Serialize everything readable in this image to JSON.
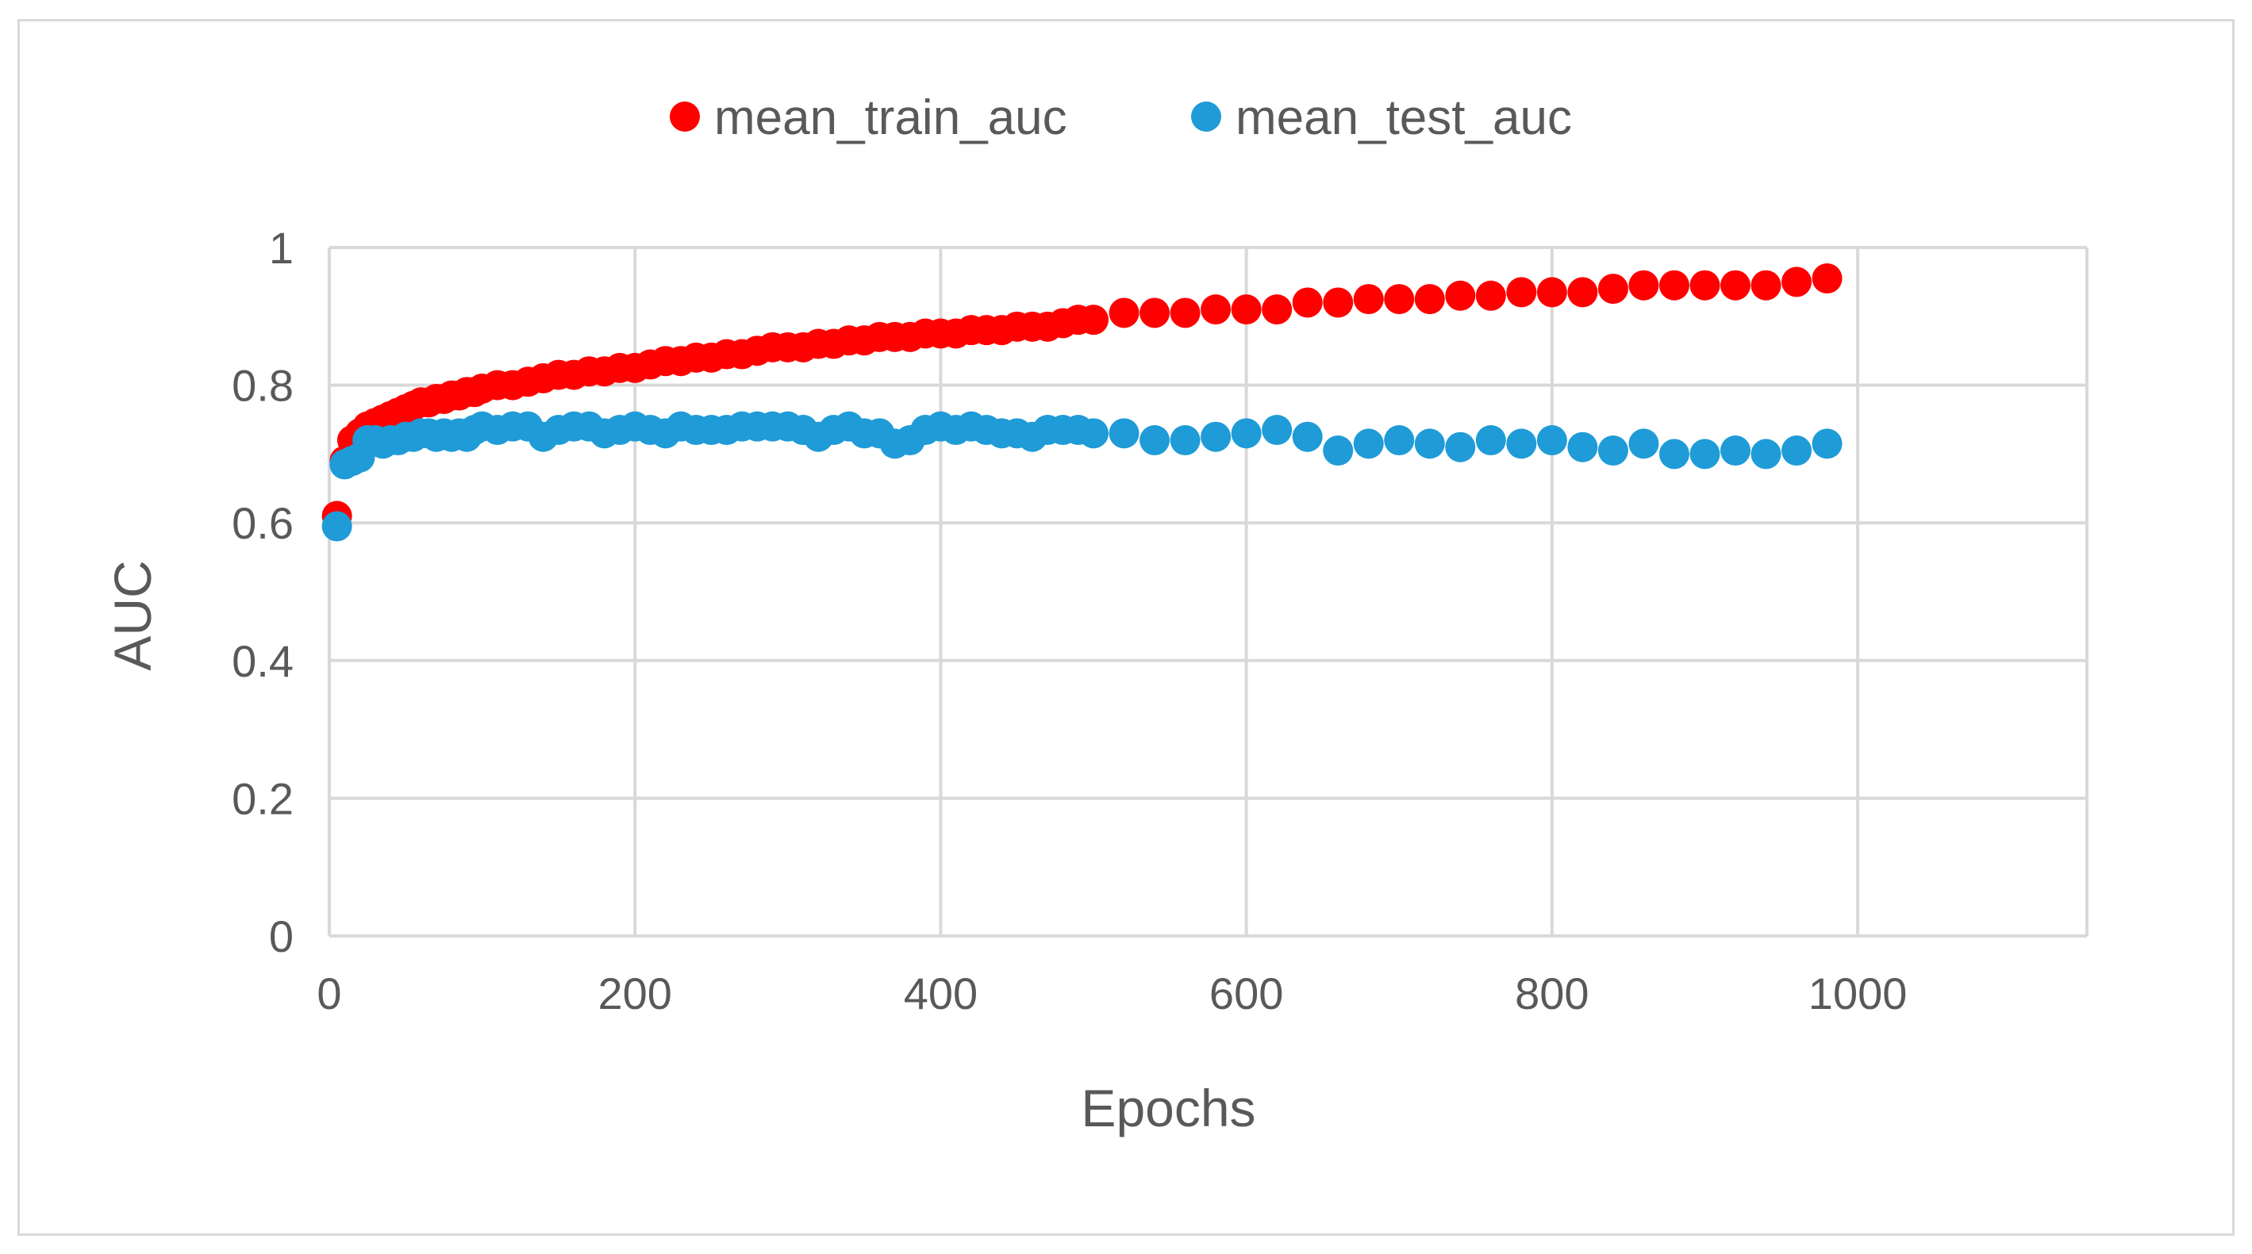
{
  "chart_data": {
    "type": "scatter",
    "title": "",
    "xlabel": "Epochs",
    "ylabel": "AUC",
    "xlim": [
      0,
      1150
    ],
    "ylim": [
      0,
      1
    ],
    "x_ticks": [
      0,
      200,
      400,
      600,
      800,
      1000
    ],
    "y_ticks": [
      0,
      0.2,
      0.4,
      0.6,
      0.8,
      1
    ],
    "x_tick_labels": [
      "0",
      "200",
      "400",
      "600",
      "800",
      "1000"
    ],
    "y_tick_labels": [
      "0",
      "0.2",
      "0.4",
      "0.6",
      "0.8",
      "1"
    ],
    "grid": "both",
    "legend_position": "top-center",
    "series": [
      {
        "name": "mean_train_auc",
        "color": "#ff0000",
        "x": [
          5,
          10,
          15,
          20,
          25,
          30,
          35,
          40,
          45,
          50,
          55,
          60,
          65,
          70,
          75,
          80,
          85,
          90,
          95,
          100,
          110,
          120,
          130,
          140,
          150,
          160,
          170,
          180,
          190,
          200,
          210,
          220,
          230,
          240,
          250,
          260,
          270,
          280,
          290,
          300,
          310,
          320,
          330,
          340,
          350,
          360,
          370,
          380,
          390,
          400,
          410,
          420,
          430,
          440,
          450,
          460,
          470,
          480,
          490,
          500,
          520,
          540,
          560,
          580,
          600,
          620,
          640,
          660,
          680,
          700,
          720,
          740,
          760,
          780,
          800,
          820,
          840,
          860,
          880,
          900,
          920,
          940,
          960,
          980
        ],
        "y": [
          0.61,
          0.69,
          0.72,
          0.73,
          0.74,
          0.745,
          0.75,
          0.755,
          0.76,
          0.765,
          0.77,
          0.775,
          0.775,
          0.78,
          0.78,
          0.785,
          0.785,
          0.79,
          0.79,
          0.795,
          0.8,
          0.8,
          0.805,
          0.81,
          0.815,
          0.815,
          0.82,
          0.82,
          0.825,
          0.825,
          0.83,
          0.835,
          0.835,
          0.84,
          0.84,
          0.845,
          0.845,
          0.85,
          0.855,
          0.855,
          0.855,
          0.86,
          0.86,
          0.865,
          0.865,
          0.87,
          0.87,
          0.87,
          0.875,
          0.875,
          0.875,
          0.88,
          0.88,
          0.88,
          0.885,
          0.885,
          0.885,
          0.89,
          0.895,
          0.895,
          0.905,
          0.905,
          0.905,
          0.91,
          0.91,
          0.91,
          0.92,
          0.92,
          0.925,
          0.925,
          0.925,
          0.93,
          0.93,
          0.935,
          0.935,
          0.935,
          0.94,
          0.945,
          0.945,
          0.945,
          0.945,
          0.945,
          0.95,
          0.955
        ]
      },
      {
        "name": "mean_test_auc",
        "color": "#1f9bd7",
        "x": [
          5,
          10,
          15,
          20,
          25,
          30,
          35,
          40,
          45,
          50,
          55,
          60,
          65,
          70,
          75,
          80,
          85,
          90,
          95,
          100,
          110,
          120,
          130,
          140,
          150,
          160,
          170,
          180,
          190,
          200,
          210,
          220,
          230,
          240,
          250,
          260,
          270,
          280,
          290,
          300,
          310,
          320,
          330,
          340,
          350,
          360,
          370,
          380,
          390,
          400,
          410,
          420,
          430,
          440,
          450,
          460,
          470,
          480,
          490,
          500,
          520,
          540,
          560,
          580,
          600,
          620,
          640,
          660,
          680,
          700,
          720,
          740,
          760,
          780,
          800,
          820,
          840,
          860,
          880,
          900,
          920,
          940,
          960,
          980
        ],
        "y": [
          0.595,
          0.685,
          0.69,
          0.695,
          0.72,
          0.72,
          0.715,
          0.72,
          0.72,
          0.725,
          0.725,
          0.73,
          0.73,
          0.725,
          0.73,
          0.725,
          0.73,
          0.725,
          0.735,
          0.74,
          0.735,
          0.74,
          0.74,
          0.725,
          0.735,
          0.74,
          0.74,
          0.73,
          0.735,
          0.74,
          0.735,
          0.73,
          0.74,
          0.735,
          0.735,
          0.735,
          0.74,
          0.74,
          0.74,
          0.74,
          0.735,
          0.725,
          0.735,
          0.74,
          0.73,
          0.73,
          0.715,
          0.72,
          0.735,
          0.74,
          0.735,
          0.74,
          0.735,
          0.73,
          0.73,
          0.725,
          0.735,
          0.735,
          0.735,
          0.73,
          0.73,
          0.72,
          0.72,
          0.725,
          0.73,
          0.735,
          0.725,
          0.705,
          0.715,
          0.72,
          0.715,
          0.71,
          0.72,
          0.715,
          0.72,
          0.71,
          0.705,
          0.715,
          0.7,
          0.7,
          0.705,
          0.7,
          0.705,
          0.715
        ]
      }
    ]
  }
}
